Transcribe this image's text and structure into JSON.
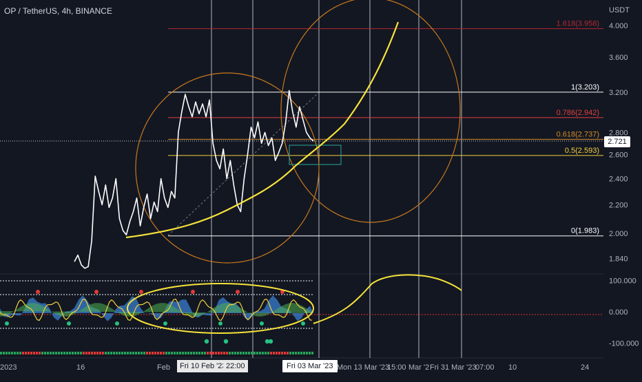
{
  "header": {
    "title": "OP / TetherUS, 4h, BINANCE",
    "currency": "USDT"
  },
  "price_tag": "2.721",
  "colors": {
    "background": "#131722",
    "price_line": "#ffffff",
    "fib_red": "#b22833",
    "fib_orange": "#d68a2a",
    "fib_yellow": "#f5d23a",
    "curve_yellow": "#f7e33a",
    "circle_orange": "#c97a1c",
    "grid_white": "#d1d4dc",
    "axis_text": "#b2b5be"
  },
  "fib_labels": [
    {
      "label": "1.618(3.958)",
      "price": 3.958,
      "color": "#b22833"
    },
    {
      "label": "1(3.203)",
      "price": 3.203,
      "color": "#ffffff"
    },
    {
      "label": "0.786(2.942)",
      "price": 2.942,
      "color": "#e04040"
    },
    {
      "label": "0.618(2.737)",
      "price": 2.737,
      "color": "#d68a2a"
    },
    {
      "label": "0.5(2.593)",
      "price": 2.593,
      "color": "#f5d23a"
    },
    {
      "label": "0(1.983)",
      "price": 1.983,
      "color": "#ffffff"
    }
  ],
  "x_axis": {
    "labels": [
      "2023",
      "16",
      "Feb",
      "Fri 10 Feb '23",
      "22:00",
      "Fri 03 Mar '23",
      "Mon 13 Mar '23",
      "15:00",
      "Mar '2",
      "Fri 31 Mar '23",
      "07:00",
      "10",
      "24"
    ]
  },
  "chart_data": [
    {
      "type": "line",
      "title": "OP / TetherUS, 4h, BINANCE",
      "ylabel": "USDT",
      "y_ticks": [
        1.84,
        2.0,
        2.2,
        2.4,
        2.6,
        2.8,
        3.2,
        3.6,
        4.0
      ],
      "y_tick_labels": [
        "1.840",
        "2.000",
        "2.200",
        "2.400",
        "2.600",
        "2.800",
        "3.200",
        "3.600",
        "4.000"
      ],
      "ylim": [
        1.78,
        4.3
      ],
      "scale": "log",
      "series": [
        {
          "values": [
            1.82,
            1.86,
            1.8,
            1.78,
            1.79,
            1.95,
            2.42,
            2.3,
            2.2,
            2.35,
            2.18,
            2.25,
            2.4,
            2.1,
            2.02,
            1.99,
            2.08,
            2.15,
            2.25,
            2.05,
            2.18,
            2.28,
            2.1,
            2.22,
            2.15,
            2.4,
            2.25,
            2.18,
            2.3,
            2.25,
            2.8,
            3.0,
            3.18,
            3.05,
            2.95,
            3.1,
            2.98,
            3.08,
            2.95,
            3.12,
            2.7,
            2.55,
            2.48,
            2.65,
            2.4,
            2.55,
            2.35,
            2.2,
            2.15,
            2.4,
            2.6,
            2.85,
            2.75,
            2.9,
            2.7,
            2.8,
            2.68,
            2.75,
            2.55,
            2.62,
            2.7,
            2.9,
            3.22,
            3.0,
            2.85,
            3.05,
            2.92,
            2.8,
            2.75,
            2.72
          ]
        }
      ],
      "fib_levels": [
        3.958,
        3.203,
        2.942,
        2.737,
        2.593,
        1.983
      ],
      "current_price": 2.721
    },
    {
      "type": "line",
      "y_ticks": [
        100,
        0,
        -100
      ],
      "y_tick_labels": [
        "100.000",
        "0.000",
        "-100.000"
      ],
      "ylim": [
        -120,
        120
      ]
    }
  ]
}
